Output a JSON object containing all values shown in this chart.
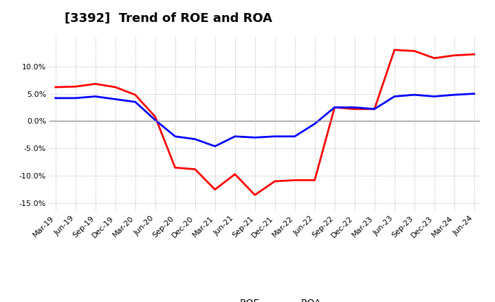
{
  "title": "[3392]  Trend of ROE and ROA",
  "x_labels": [
    "Mar-19",
    "Jun-19",
    "Sep-19",
    "Dec-19",
    "Mar-20",
    "Jun-20",
    "Sep-20",
    "Dec-20",
    "Mar-21",
    "Jun-21",
    "Sep-21",
    "Dec-21",
    "Mar-22",
    "Jun-22",
    "Sep-22",
    "Dec-22",
    "Mar-23",
    "Jun-23",
    "Sep-23",
    "Dec-23",
    "Mar-24",
    "Jun-24"
  ],
  "roe": [
    6.2,
    6.3,
    6.8,
    6.2,
    4.8,
    0.8,
    -8.5,
    -8.8,
    -12.5,
    -9.7,
    -13.5,
    -11.0,
    -10.8,
    -10.8,
    2.5,
    2.2,
    2.2,
    13.0,
    12.8,
    11.5,
    12.0,
    12.2
  ],
  "roa": [
    4.2,
    4.2,
    4.5,
    4.0,
    3.5,
    0.2,
    -2.8,
    -3.3,
    -4.6,
    -2.8,
    -3.0,
    -2.8,
    -2.8,
    -0.5,
    2.5,
    2.5,
    2.2,
    4.5,
    4.8,
    4.5,
    4.8,
    5.0
  ],
  "roe_color": "#ff0000",
  "roa_color": "#0000ff",
  "ylim": [
    -16.5,
    15.5
  ],
  "yticks": [
    -15.0,
    -10.0,
    -5.0,
    0.0,
    5.0,
    10.0
  ],
  "grid_color": "#aaaaaa",
  "background_color": "#ffffff",
  "plot_bg_color": "#ffffff",
  "line_width": 2.0,
  "title_fontsize": 13,
  "tick_fontsize": 8,
  "legend_fontsize": 10
}
